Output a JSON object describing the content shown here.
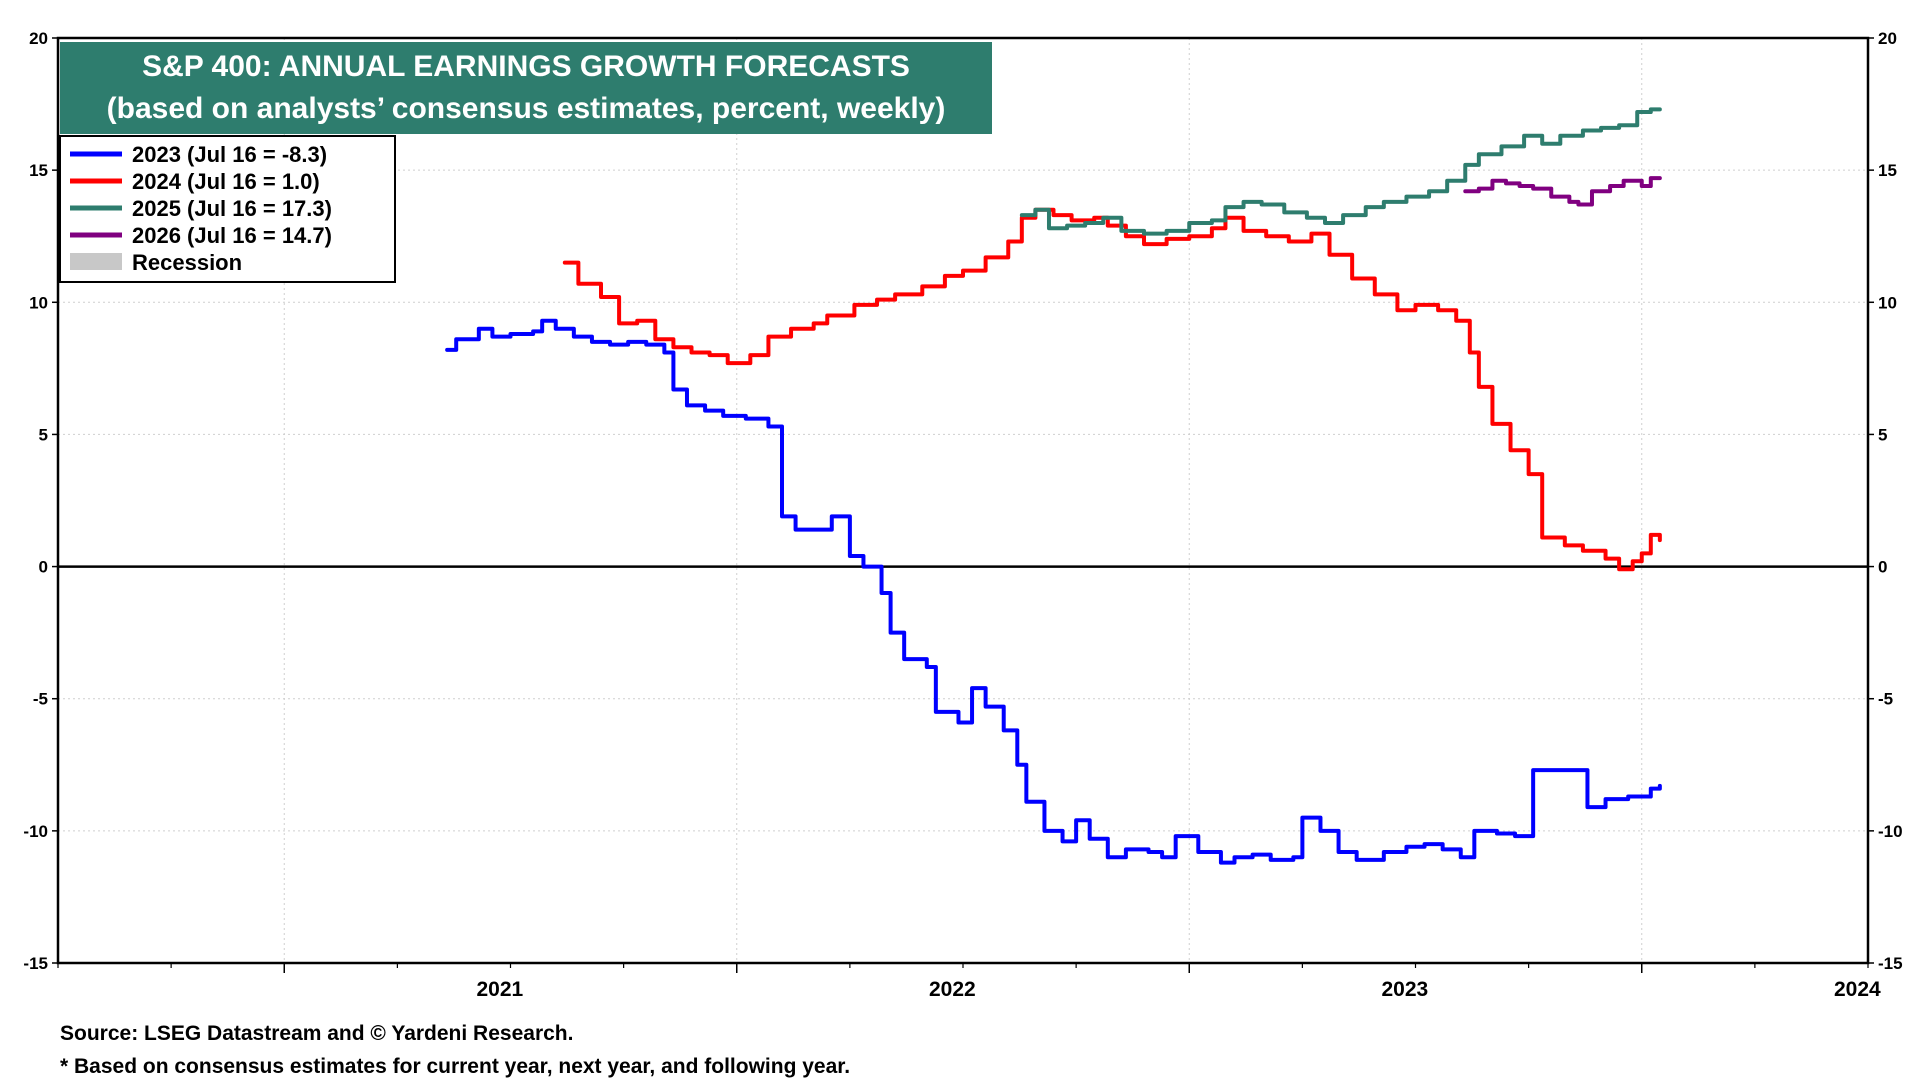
{
  "chart_data": {
    "type": "line",
    "title": "S&P 400: ANNUAL EARNINGS GROWTH FORECASTS",
    "subtitle": "(based on analysts’ consensus estimates, percent, weekly)",
    "ylim": [
      -15,
      20
    ],
    "yticks": [
      "20",
      "15",
      "10",
      "5",
      "0",
      "-5",
      "-10",
      "-15"
    ],
    "x_range": [
      2020.5,
      2024.5
    ],
    "xticks": [
      "2021",
      "2022",
      "2023",
      "2024"
    ],
    "grid": true,
    "legend_position": "top-left",
    "recession_label": "Recession",
    "colors": {
      "title_bg": "#2E7D6E",
      "recession": "#C8C8C8",
      "zero_line": "#000000"
    },
    "series": [
      {
        "name": "2023 (Jul 16 = -8.3)",
        "color": "#0000FF",
        "points": [
          [
            2021.36,
            8.2
          ],
          [
            2021.38,
            8.6
          ],
          [
            2021.43,
            9.0
          ],
          [
            2021.46,
            8.7
          ],
          [
            2021.5,
            8.8
          ],
          [
            2021.55,
            8.9
          ],
          [
            2021.57,
            9.3
          ],
          [
            2021.6,
            9.0
          ],
          [
            2021.64,
            8.7
          ],
          [
            2021.68,
            8.5
          ],
          [
            2021.72,
            8.4
          ],
          [
            2021.76,
            8.5
          ],
          [
            2021.8,
            8.4
          ],
          [
            2021.84,
            8.1
          ],
          [
            2021.86,
            6.7
          ],
          [
            2021.89,
            6.1
          ],
          [
            2021.93,
            5.9
          ],
          [
            2021.97,
            5.7
          ],
          [
            2022.02,
            5.6
          ],
          [
            2022.07,
            5.3
          ],
          [
            2022.1,
            1.9
          ],
          [
            2022.13,
            1.4
          ],
          [
            2022.18,
            1.4
          ],
          [
            2022.21,
            1.9
          ],
          [
            2022.25,
            0.4
          ],
          [
            2022.28,
            0.0
          ],
          [
            2022.32,
            -1.0
          ],
          [
            2022.34,
            -2.5
          ],
          [
            2022.37,
            -3.5
          ],
          [
            2022.42,
            -3.8
          ],
          [
            2022.44,
            -5.5
          ],
          [
            2022.49,
            -5.9
          ],
          [
            2022.52,
            -4.6
          ],
          [
            2022.55,
            -5.3
          ],
          [
            2022.59,
            -6.2
          ],
          [
            2022.62,
            -7.5
          ],
          [
            2022.64,
            -8.9
          ],
          [
            2022.68,
            -10.0
          ],
          [
            2022.72,
            -10.4
          ],
          [
            2022.75,
            -9.6
          ],
          [
            2022.78,
            -10.3
          ],
          [
            2022.82,
            -11.0
          ],
          [
            2022.86,
            -10.7
          ],
          [
            2022.91,
            -10.8
          ],
          [
            2022.94,
            -11.0
          ],
          [
            2022.97,
            -10.2
          ],
          [
            2023.02,
            -10.8
          ],
          [
            2023.07,
            -11.2
          ],
          [
            2023.1,
            -11.0
          ],
          [
            2023.14,
            -10.9
          ],
          [
            2023.18,
            -11.1
          ],
          [
            2023.23,
            -11.0
          ],
          [
            2023.25,
            -9.5
          ],
          [
            2023.29,
            -10.0
          ],
          [
            2023.33,
            -10.8
          ],
          [
            2023.37,
            -11.1
          ],
          [
            2023.43,
            -10.8
          ],
          [
            2023.48,
            -10.6
          ],
          [
            2023.52,
            -10.5
          ],
          [
            2023.56,
            -10.7
          ],
          [
            2023.6,
            -11.0
          ],
          [
            2023.63,
            -10.0
          ],
          [
            2023.68,
            -10.1
          ],
          [
            2023.72,
            -10.2
          ],
          [
            2023.76,
            -7.7
          ],
          [
            2023.85,
            -7.7
          ],
          [
            2023.88,
            -9.1
          ],
          [
            2023.92,
            -8.8
          ],
          [
            2023.97,
            -8.7
          ],
          [
            2024.02,
            -8.4
          ],
          [
            2024.04,
            -8.3
          ]
        ]
      },
      {
        "name": "2024 (Jul 16 = 1.0)",
        "color": "#FF0000",
        "points": [
          [
            2021.62,
            11.5
          ],
          [
            2021.65,
            10.7
          ],
          [
            2021.7,
            10.2
          ],
          [
            2021.74,
            9.2
          ],
          [
            2021.78,
            9.3
          ],
          [
            2021.82,
            8.6
          ],
          [
            2021.86,
            8.3
          ],
          [
            2021.9,
            8.1
          ],
          [
            2021.94,
            8.0
          ],
          [
            2021.98,
            7.7
          ],
          [
            2022.03,
            8.0
          ],
          [
            2022.07,
            8.7
          ],
          [
            2022.12,
            9.0
          ],
          [
            2022.17,
            9.2
          ],
          [
            2022.2,
            9.5
          ],
          [
            2022.26,
            9.9
          ],
          [
            2022.31,
            10.1
          ],
          [
            2022.35,
            10.3
          ],
          [
            2022.41,
            10.6
          ],
          [
            2022.46,
            11.0
          ],
          [
            2022.5,
            11.2
          ],
          [
            2022.55,
            11.7
          ],
          [
            2022.6,
            12.3
          ],
          [
            2022.63,
            13.2
          ],
          [
            2022.66,
            13.5
          ],
          [
            2022.7,
            13.3
          ],
          [
            2022.74,
            13.1
          ],
          [
            2022.79,
            13.2
          ],
          [
            2022.82,
            12.9
          ],
          [
            2022.86,
            12.5
          ],
          [
            2022.9,
            12.2
          ],
          [
            2022.95,
            12.4
          ],
          [
            2023.0,
            12.5
          ],
          [
            2023.05,
            12.8
          ],
          [
            2023.08,
            13.2
          ],
          [
            2023.12,
            12.7
          ],
          [
            2023.17,
            12.5
          ],
          [
            2023.22,
            12.3
          ],
          [
            2023.27,
            12.6
          ],
          [
            2023.31,
            11.8
          ],
          [
            2023.36,
            10.9
          ],
          [
            2023.41,
            10.3
          ],
          [
            2023.46,
            9.7
          ],
          [
            2023.5,
            9.9
          ],
          [
            2023.55,
            9.7
          ],
          [
            2023.59,
            9.3
          ],
          [
            2023.62,
            8.1
          ],
          [
            2023.64,
            6.8
          ],
          [
            2023.67,
            5.4
          ],
          [
            2023.71,
            4.4
          ],
          [
            2023.75,
            3.5
          ],
          [
            2023.78,
            1.1
          ],
          [
            2023.83,
            0.8
          ],
          [
            2023.87,
            0.6
          ],
          [
            2023.92,
            0.3
          ],
          [
            2023.95,
            -0.1
          ],
          [
            2023.98,
            0.2
          ],
          [
            2024.0,
            0.5
          ],
          [
            2024.02,
            1.2
          ],
          [
            2024.04,
            1.0
          ]
        ]
      },
      {
        "name": "2025 (Jul 16 = 17.3)",
        "color": "#2E7D6E",
        "points": [
          [
            2022.63,
            13.3
          ],
          [
            2022.66,
            13.5
          ],
          [
            2022.69,
            12.8
          ],
          [
            2022.73,
            12.9
          ],
          [
            2022.77,
            13.0
          ],
          [
            2022.81,
            13.2
          ],
          [
            2022.85,
            12.7
          ],
          [
            2022.9,
            12.6
          ],
          [
            2022.95,
            12.7
          ],
          [
            2023.0,
            13.0
          ],
          [
            2023.05,
            13.1
          ],
          [
            2023.08,
            13.6
          ],
          [
            2023.12,
            13.8
          ],
          [
            2023.16,
            13.7
          ],
          [
            2023.21,
            13.4
          ],
          [
            2023.26,
            13.2
          ],
          [
            2023.3,
            13.0
          ],
          [
            2023.34,
            13.3
          ],
          [
            2023.39,
            13.6
          ],
          [
            2023.43,
            13.8
          ],
          [
            2023.48,
            14.0
          ],
          [
            2023.53,
            14.2
          ],
          [
            2023.57,
            14.6
          ],
          [
            2023.61,
            15.2
          ],
          [
            2023.64,
            15.6
          ],
          [
            2023.69,
            15.9
          ],
          [
            2023.74,
            16.3
          ],
          [
            2023.78,
            16.0
          ],
          [
            2023.82,
            16.3
          ],
          [
            2023.87,
            16.5
          ],
          [
            2023.91,
            16.6
          ],
          [
            2023.95,
            16.7
          ],
          [
            2023.99,
            17.2
          ],
          [
            2024.02,
            17.3
          ],
          [
            2024.04,
            17.3
          ]
        ]
      },
      {
        "name": "2026 (Jul 16 = 14.7)",
        "color": "#800080",
        "points": [
          [
            2023.61,
            14.2
          ],
          [
            2023.64,
            14.3
          ],
          [
            2023.67,
            14.6
          ],
          [
            2023.7,
            14.5
          ],
          [
            2023.73,
            14.4
          ],
          [
            2023.76,
            14.3
          ],
          [
            2023.8,
            14.0
          ],
          [
            2023.84,
            13.8
          ],
          [
            2023.86,
            13.7
          ],
          [
            2023.89,
            14.2
          ],
          [
            2023.93,
            14.4
          ],
          [
            2023.96,
            14.6
          ],
          [
            2024.0,
            14.4
          ],
          [
            2024.02,
            14.7
          ],
          [
            2024.04,
            14.7
          ]
        ]
      }
    ]
  },
  "footer": {
    "source": "Source: LSEG Datastream and © Yardeni Research.",
    "note": "* Based on consensus estimates for current year, next year, and following year."
  }
}
